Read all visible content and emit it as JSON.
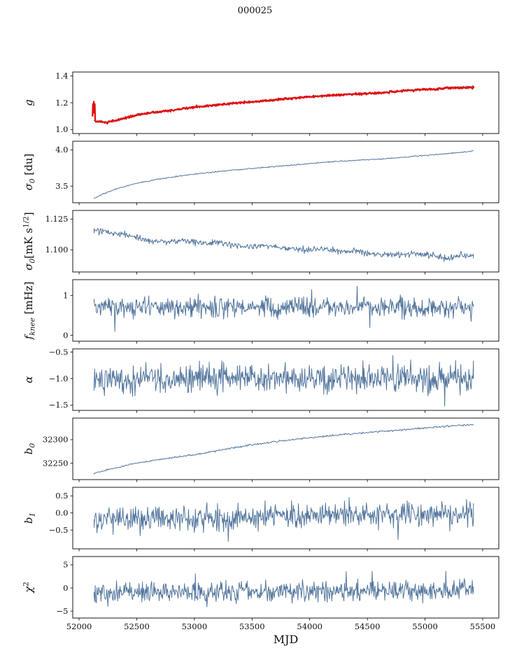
{
  "chart_data": {
    "type": "line",
    "title": "000025",
    "xlabel": "MJD",
    "xlim": [
      51945,
      55640
    ],
    "x_data_range": [
      52130,
      55420
    ],
    "x_ticks": [
      52000,
      52500,
      53000,
      53500,
      54000,
      54500,
      55000,
      55500
    ],
    "x_tick_labels": [
      "52000",
      "52500",
      "53000",
      "53500",
      "54000",
      "54500",
      "55000",
      "55500"
    ],
    "grid": false,
    "legend": "none",
    "subplots": [
      {
        "name": "g",
        "ylabel_segs": [
          {
            "t": "g"
          }
        ],
        "ylim": [
          0.97,
          1.43
        ],
        "ytick_vals": [
          1.0,
          1.2,
          1.4
        ],
        "ytick_labels": [
          "1.0",
          "1.2",
          "1.4"
        ],
        "series": [
          {
            "name": "g-model-line",
            "color": "#54779e",
            "width": 1.0,
            "seed": 7,
            "points": 520,
            "noise": 0.0035,
            "spiky": false,
            "anchors": [
              [
                52130,
                1.068
              ],
              [
                52170,
                1.058
              ],
              [
                52240,
                1.052
              ],
              [
                52320,
                1.068
              ],
              [
                52420,
                1.09
              ],
              [
                52520,
                1.112
              ],
              [
                52650,
                1.128
              ],
              [
                52800,
                1.143
              ],
              [
                53000,
                1.168
              ],
              [
                53200,
                1.185
              ],
              [
                53400,
                1.2
              ],
              [
                53600,
                1.214
              ],
              [
                53800,
                1.23
              ],
              [
                54000,
                1.245
              ],
              [
                54200,
                1.257
              ],
              [
                54400,
                1.266
              ],
              [
                54600,
                1.274
              ],
              [
                54800,
                1.288
              ],
              [
                55000,
                1.3
              ],
              [
                55100,
                1.302
              ],
              [
                55200,
                1.312
              ],
              [
                55300,
                1.318
              ],
              [
                55420,
                1.324
              ]
            ]
          },
          {
            "name": "g-fit-line",
            "color": "#e01212",
            "width": 2.3,
            "seed": 9,
            "points": 760,
            "noise": 0.004,
            "spiky": false,
            "anchors": [
              [
                52116,
                1.1
              ],
              [
                52120,
                1.185
              ],
              [
                52124,
                1.13
              ],
              [
                52128,
                1.205
              ],
              [
                52132,
                1.12
              ],
              [
                52136,
                1.19
              ],
              [
                52140,
                1.062
              ],
              [
                52170,
                1.058
              ],
              [
                52240,
                1.052
              ],
              [
                52320,
                1.068
              ],
              [
                52420,
                1.09
              ],
              [
                52520,
                1.112
              ],
              [
                52650,
                1.128
              ],
              [
                52800,
                1.143
              ],
              [
                53000,
                1.168
              ],
              [
                53200,
                1.185
              ],
              [
                53400,
                1.2
              ],
              [
                53600,
                1.214
              ],
              [
                53800,
                1.23
              ],
              [
                54000,
                1.245
              ],
              [
                54200,
                1.257
              ],
              [
                54400,
                1.266
              ],
              [
                54600,
                1.274
              ],
              [
                54800,
                1.288
              ],
              [
                55000,
                1.3
              ],
              [
                55100,
                1.302
              ],
              [
                55200,
                1.31
              ],
              [
                55320,
                1.312
              ],
              [
                55420,
                1.312
              ]
            ]
          }
        ]
      },
      {
        "name": "sigma0-du",
        "ylabel_segs": [
          {
            "t": "σ"
          },
          {
            "t": "0",
            "s": "sub"
          },
          {
            "t": " [du]",
            "s": "up"
          }
        ],
        "ylim": [
          3.27,
          4.12
        ],
        "ytick_vals": [
          3.5,
          4.0
        ],
        "ytick_labels": [
          "3.5",
          "4.0"
        ],
        "series": [
          {
            "name": "sigma0-du-line",
            "color": "#54779e",
            "width": 1.0,
            "seed": 21,
            "points": 520,
            "noise": 0.004,
            "spiky": false,
            "anchors": [
              [
                52130,
                3.33
              ],
              [
                52220,
                3.4
              ],
              [
                52320,
                3.46
              ],
              [
                52430,
                3.51
              ],
              [
                52550,
                3.555
              ],
              [
                52700,
                3.6
              ],
              [
                52850,
                3.635
              ],
              [
                53000,
                3.665
              ],
              [
                53200,
                3.7
              ],
              [
                53400,
                3.73
              ],
              [
                53600,
                3.757
              ],
              [
                53800,
                3.783
              ],
              [
                54000,
                3.81
              ],
              [
                54200,
                3.838
              ],
              [
                54400,
                3.856
              ],
              [
                54600,
                3.872
              ],
              [
                54800,
                3.896
              ],
              [
                55000,
                3.925
              ],
              [
                55200,
                3.95
              ],
              [
                55420,
                3.985
              ]
            ]
          }
        ]
      },
      {
        "name": "sigma0-mks",
        "ylabel_segs": [
          {
            "t": "σ"
          },
          {
            "t": "0",
            "s": "sub"
          },
          {
            "t": "[mK s",
            "s": "up"
          },
          {
            "t": "1/2",
            "s": "sup"
          },
          {
            "t": "]",
            "s": "up"
          }
        ],
        "ylim": [
          1.082,
          1.132
        ],
        "ytick_vals": [
          1.1,
          1.125
        ],
        "ytick_labels": [
          "1.100",
          "1.125"
        ],
        "series": [
          {
            "name": "sigma0-mks-line",
            "color": "#54779e",
            "width": 1.0,
            "seed": 31,
            "points": 620,
            "noise": 0.0013,
            "spiky": false,
            "anchors": [
              [
                52130,
                1.1155
              ],
              [
                52200,
                1.1145
              ],
              [
                52300,
                1.1135
              ],
              [
                52400,
                1.113
              ],
              [
                52500,
                1.1105
              ],
              [
                52600,
                1.1075
              ],
              [
                52700,
                1.107
              ],
              [
                52800,
                1.1068
              ],
              [
                52900,
                1.108
              ],
              [
                53000,
                1.1062
              ],
              [
                53100,
                1.105
              ],
              [
                53200,
                1.1062
              ],
              [
                53300,
                1.104
              ],
              [
                53400,
                1.1028
              ],
              [
                53500,
                1.102
              ],
              [
                53600,
                1.1035
              ],
              [
                53700,
                1.1028
              ],
              [
                53800,
                1.101
              ],
              [
                53900,
                1.1005
              ],
              [
                54000,
                1.0998
              ],
              [
                54100,
                1.101
              ],
              [
                54200,
                1.0995
              ],
              [
                54300,
                1.0985
              ],
              [
                54400,
                1.099
              ],
              [
                54500,
                1.097
              ],
              [
                54600,
                1.0962
              ],
              [
                54700,
                1.0955
              ],
              [
                54800,
                1.0965
              ],
              [
                54900,
                1.0968
              ],
              [
                55000,
                1.0952
              ],
              [
                55100,
                1.0948
              ],
              [
                55200,
                1.0932
              ],
              [
                55300,
                1.0955
              ],
              [
                55420,
                1.0952
              ]
            ]
          }
        ]
      },
      {
        "name": "fknee",
        "ylabel_segs": [
          {
            "t": "f"
          },
          {
            "t": "knee",
            "s": "sub"
          },
          {
            "t": " [mHz]",
            "s": "up"
          }
        ],
        "ylim": [
          -0.15,
          1.4
        ],
        "ytick_vals": [
          0,
          1
        ],
        "ytick_labels": [
          "0",
          "1"
        ],
        "series": [
          {
            "name": "fknee-line",
            "color": "#54779e",
            "width": 1.0,
            "seed": 41,
            "points": 660,
            "noise": 0.13,
            "spiky": true,
            "anchors": [
              [
                52130,
                0.71
              ],
              [
                53000,
                0.7
              ],
              [
                54000,
                0.71
              ],
              [
                55420,
                0.7
              ]
            ]
          }
        ]
      },
      {
        "name": "alpha",
        "ylabel_segs": [
          {
            "t": "α"
          }
        ],
        "ylim": [
          -1.6,
          -0.44
        ],
        "ytick_vals": [
          -1.5,
          -1.0,
          -0.5
        ],
        "ytick_labels": [
          "−1.5",
          "−1.0",
          "−0.5"
        ],
        "series": [
          {
            "name": "alpha-line",
            "color": "#54779e",
            "width": 1.0,
            "seed": 51,
            "points": 660,
            "noise": 0.13,
            "spiky": true,
            "anchors": [
              [
                52130,
                -1.0
              ],
              [
                55420,
                -1.0
              ]
            ]
          }
        ]
      },
      {
        "name": "b0",
        "ylabel_segs": [
          {
            "t": "b"
          },
          {
            "t": "0",
            "s": "sub"
          }
        ],
        "ylim": [
          32215,
          32346
        ],
        "ytick_vals": [
          32250,
          32300
        ],
        "ytick_labels": [
          "32250",
          "32300"
        ],
        "series": [
          {
            "name": "b0-line",
            "color": "#54779e",
            "width": 1.0,
            "seed": 61,
            "points": 480,
            "noise": 0.9,
            "spiky": false,
            "anchors": [
              [
                52130,
                32228
              ],
              [
                52250,
                32236
              ],
              [
                52400,
                32245
              ],
              [
                52550,
                32252
              ],
              [
                52700,
                32258
              ],
              [
                52850,
                32263
              ],
              [
                53000,
                32268
              ],
              [
                53100,
                32272
              ],
              [
                53250,
                32279
              ],
              [
                53400,
                32285
              ],
              [
                53550,
                32291
              ],
              [
                53700,
                32296
              ],
              [
                53850,
                32300
              ],
              [
                54000,
                32304
              ],
              [
                54150,
                32308
              ],
              [
                54300,
                32311
              ],
              [
                54450,
                32314
              ],
              [
                54600,
                32317
              ],
              [
                54800,
                32321
              ],
              [
                55000,
                32325
              ],
              [
                55200,
                32329
              ],
              [
                55420,
                32332
              ]
            ]
          }
        ]
      },
      {
        "name": "b1",
        "ylabel_segs": [
          {
            "t": "b"
          },
          {
            "t": "1",
            "s": "sub"
          }
        ],
        "ylim": [
          -1.05,
          0.75
        ],
        "ytick_vals": [
          -0.5,
          0.0,
          0.5
        ],
        "ytick_labels": [
          "−0.5",
          "0.0",
          "0.5"
        ],
        "series": [
          {
            "name": "b1-line",
            "color": "#54779e",
            "width": 1.0,
            "seed": 71,
            "points": 660,
            "noise": 0.17,
            "spiky": true,
            "anchors": [
              [
                52130,
                -0.2
              ],
              [
                52600,
                -0.17
              ],
              [
                53200,
                -0.14
              ],
              [
                53800,
                -0.08
              ],
              [
                54400,
                -0.04
              ],
              [
                55420,
                -0.02
              ]
            ]
          }
        ]
      },
      {
        "name": "chi2",
        "ylabel_segs": [
          {
            "t": "χ"
          },
          {
            "t": "2",
            "s": "sup"
          }
        ],
        "ylim": [
          -6.5,
          6.8
        ],
        "ytick_vals": [
          -5,
          0,
          5
        ],
        "ytick_labels": [
          "−5",
          "0",
          "5"
        ],
        "series": [
          {
            "name": "chi2-line",
            "color": "#54779e",
            "width": 1.0,
            "seed": 81,
            "points": 660,
            "noise": 1.05,
            "spiky": true,
            "anchors": [
              [
                52130,
                -0.9
              ],
              [
                53500,
                -0.8
              ],
              [
                55420,
                -0.6
              ]
            ]
          }
        ]
      }
    ]
  }
}
